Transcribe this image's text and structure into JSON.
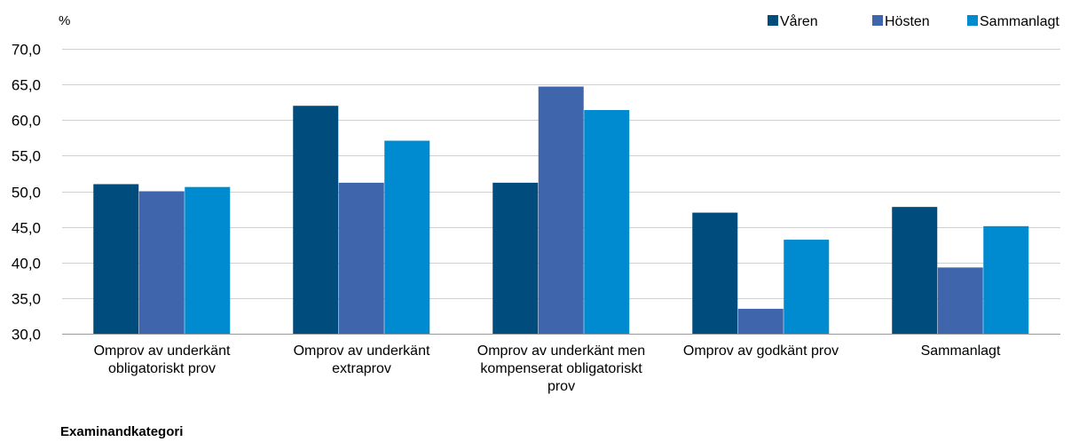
{
  "chart_data": {
    "type": "bar",
    "unit_label": "%",
    "xlabel": "Examinandkategori",
    "ylim": [
      30,
      70
    ],
    "yticks": [
      "70,0",
      "65,0",
      "60,0",
      "55,0",
      "50,0",
      "45,0",
      "40,0",
      "35,0",
      "30,0"
    ],
    "grid": true,
    "legend_position": "top-right",
    "categories": [
      [
        "Omprov av underkänt",
        "obligatoriskt prov"
      ],
      [
        "Omprov av underkänt",
        "extraprov"
      ],
      [
        "Omprov av underkänt men",
        "kompenserat obligatoriskt",
        "prov"
      ],
      [
        "Omprov av godkänt prov"
      ],
      [
        "Sammanlagt"
      ]
    ],
    "series": [
      {
        "name": "Våren",
        "color": "#004c7c",
        "values": [
          51.0,
          62.0,
          51.2,
          47.0,
          47.8
        ]
      },
      {
        "name": "Hösten",
        "color": "#3f66ad",
        "values": [
          50.0,
          51.2,
          64.7,
          33.5,
          39.3
        ]
      },
      {
        "name": "Sammanlagt",
        "color": "#008bd0",
        "values": [
          50.6,
          57.1,
          61.4,
          43.2,
          45.1
        ]
      }
    ]
  }
}
